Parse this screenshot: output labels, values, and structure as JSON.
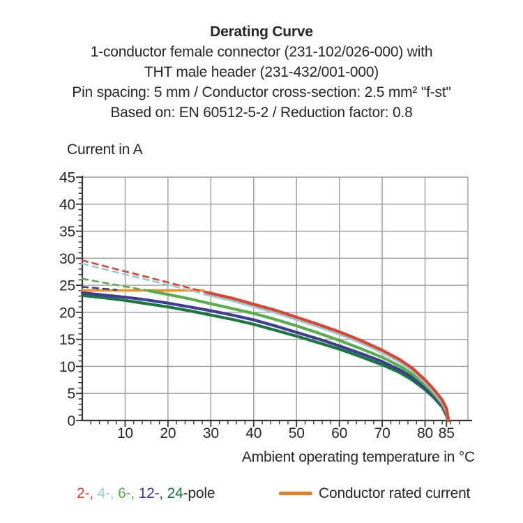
{
  "header": {
    "title": "Derating Curve",
    "line2": "1-conductor female connector (231-102/026-000) with",
    "line3": "THT male header (231-432/001-000)",
    "line4": "Pin spacing: 5 mm / Conductor cross-section: 2.5 mm² \"f-st\"",
    "line5": "Based on: EN 60512-5-2 / Reduction factor: 0.8"
  },
  "axes": {
    "y_title": "Current in A",
    "x_title": "Ambient operating temperature in °C"
  },
  "legend": {
    "poles": [
      {
        "text": "2-,",
        "color": "#e6402a"
      },
      {
        "text": "4-,",
        "color": "#8ccdda"
      },
      {
        "text": "6-,",
        "color": "#55b04a"
      },
      {
        "text": "12-,",
        "color": "#3e3b99"
      },
      {
        "text": "24",
        "color": "#17793c"
      }
    ],
    "poles_suffix": "-pole",
    "rated_label": "Conductor rated current",
    "rated_color": "#ef7d1d"
  },
  "colors": {
    "grid": "#9c9c9c",
    "axis": "#333333",
    "text": "#26262a",
    "orange_line": "#f0911e"
  },
  "chart_data": {
    "type": "line",
    "title": "Derating Curve",
    "xlabel": "Ambient operating temperature in °C",
    "ylabel": "Current in A",
    "xlim": [
      0,
      90
    ],
    "ylim": [
      0,
      45
    ],
    "grid": true,
    "legend_position": "bottom",
    "x_ticks": [
      {
        "v": 10,
        "label": "10"
      },
      {
        "v": 20,
        "label": "20"
      },
      {
        "v": 30,
        "label": "30"
      },
      {
        "v": 40,
        "label": "40"
      },
      {
        "v": 50,
        "label": "50"
      },
      {
        "v": 60,
        "label": "60"
      },
      {
        "v": 70,
        "label": "70"
      },
      {
        "v": 80,
        "label": "80"
      },
      {
        "v": 85,
        "label": "85"
      }
    ],
    "y_ticks": [
      {
        "v": 0,
        "label": "0"
      },
      {
        "v": 5,
        "label": "5"
      },
      {
        "v": 10,
        "label": "10"
      },
      {
        "v": 15,
        "label": "15"
      },
      {
        "v": 20,
        "label": "20"
      },
      {
        "v": 25,
        "label": "25"
      },
      {
        "v": 30,
        "label": "30"
      },
      {
        "v": 35,
        "label": "35"
      },
      {
        "v": 40,
        "label": "40"
      },
      {
        "v": 45,
        "label": "45"
      }
    ],
    "x_minor_step": 2,
    "y_minor_step": 1,
    "series": [
      {
        "name": "conductor-rated-current",
        "color": "#f0911e",
        "width": 3.5,
        "segments": [
          {
            "style": "solid",
            "points": [
              [
                0,
                24.05
              ],
              [
                28.3,
                24.05
              ]
            ]
          }
        ]
      },
      {
        "name": "24-pole",
        "color": "#17793c",
        "width": 4.2,
        "segments": [
          {
            "style": "solid",
            "points": [
              [
                0,
                23.1
              ],
              [
                5,
                22.7
              ],
              [
                10,
                22.2
              ],
              [
                15,
                21.6
              ],
              [
                20,
                21.0
              ],
              [
                25,
                20.3
              ],
              [
                30,
                19.5
              ],
              [
                35,
                18.7
              ],
              [
                40,
                17.8
              ],
              [
                45,
                16.7
              ],
              [
                50,
                15.6
              ],
              [
                55,
                14.4
              ],
              [
                60,
                13.2
              ],
              [
                65,
                11.8
              ],
              [
                70,
                10.3
              ],
              [
                74,
                8.9
              ],
              [
                77,
                7.5
              ],
              [
                80,
                5.7
              ],
              [
                82,
                4.3
              ],
              [
                84,
                2.5
              ],
              [
                85,
                0.9
              ],
              [
                85.3,
                0
              ]
            ]
          }
        ]
      },
      {
        "name": "12-pole",
        "color": "#3e3b99",
        "width": 4.2,
        "segments": [
          {
            "style": "dashed",
            "points": [
              [
                0,
                24.7
              ],
              [
                8,
                24.15
              ]
            ]
          },
          {
            "style": "solid",
            "points": [
              [
                0,
                23.6
              ],
              [
                5,
                23.2
              ],
              [
                10,
                22.8
              ],
              [
                15,
                22.3
              ],
              [
                20,
                21.7
              ],
              [
                25,
                21.0
              ],
              [
                30,
                20.3
              ],
              [
                35,
                19.5
              ],
              [
                40,
                18.6
              ],
              [
                45,
                17.5
              ],
              [
                50,
                16.3
              ],
              [
                55,
                15.1
              ],
              [
                60,
                13.8
              ],
              [
                65,
                12.4
              ],
              [
                70,
                10.9
              ],
              [
                74,
                9.4
              ],
              [
                77,
                8.0
              ],
              [
                80,
                6.1
              ],
              [
                82,
                4.6
              ],
              [
                84,
                2.8
              ],
              [
                85,
                1.2
              ],
              [
                85.35,
                0
              ]
            ]
          }
        ]
      },
      {
        "name": "6-pole",
        "color": "#55b04a",
        "width": 4.2,
        "segments": [
          {
            "style": "dashed",
            "points": [
              [
                0,
                26.2
              ],
              [
                15.5,
                24.0
              ]
            ]
          },
          {
            "style": "solid",
            "points": [
              [
                15.5,
                24.0
              ],
              [
                20,
                23.3
              ],
              [
                25,
                22.5
              ],
              [
                30,
                21.6
              ],
              [
                35,
                20.7
              ],
              [
                40,
                19.8
              ],
              [
                45,
                18.7
              ],
              [
                50,
                17.5
              ],
              [
                55,
                16.2
              ],
              [
                60,
                14.8
              ],
              [
                65,
                13.3
              ],
              [
                70,
                11.7
              ],
              [
                74,
                10.1
              ],
              [
                77,
                8.6
              ],
              [
                80,
                6.6
              ],
              [
                82,
                5.0
              ],
              [
                84,
                3.1
              ],
              [
                85,
                1.5
              ],
              [
                85.4,
                0
              ]
            ]
          }
        ]
      },
      {
        "name": "4-pole",
        "color": "#8ccdda",
        "width": 4.2,
        "segments": [
          {
            "style": "dashed",
            "points": [
              [
                0,
                29.0
              ],
              [
                28.5,
                23.4
              ]
            ]
          },
          {
            "style": "solid",
            "points": [
              [
                28.5,
                23.4
              ],
              [
                35,
                22.2
              ],
              [
                40,
                21.1
              ],
              [
                45,
                20.0
              ],
              [
                50,
                18.7
              ],
              [
                55,
                17.4
              ],
              [
                60,
                16.0
              ],
              [
                65,
                14.4
              ],
              [
                70,
                12.6
              ],
              [
                74,
                10.9
              ],
              [
                77,
                9.3
              ],
              [
                80,
                7.1
              ],
              [
                82,
                5.4
              ],
              [
                84,
                3.4
              ],
              [
                85,
                1.8
              ],
              [
                85.45,
                0
              ]
            ]
          }
        ]
      },
      {
        "name": "2-pole",
        "color": "#e6402a",
        "width": 4.2,
        "segments": [
          {
            "style": "dashed",
            "points": [
              [
                0,
                29.6
              ],
              [
                29,
                23.7
              ]
            ]
          },
          {
            "style": "solid",
            "points": [
              [
                29,
                23.7
              ],
              [
                35,
                22.6
              ],
              [
                40,
                21.5
              ],
              [
                45,
                20.4
              ],
              [
                50,
                19.1
              ],
              [
                55,
                17.8
              ],
              [
                60,
                16.4
              ],
              [
                65,
                14.8
              ],
              [
                70,
                13.0
              ],
              [
                74,
                11.3
              ],
              [
                77,
                9.7
              ],
              [
                80,
                7.5
              ],
              [
                82,
                5.8
              ],
              [
                84,
                3.8
              ],
              [
                85,
                2.2
              ],
              [
                85.5,
                0
              ]
            ]
          }
        ]
      }
    ]
  }
}
